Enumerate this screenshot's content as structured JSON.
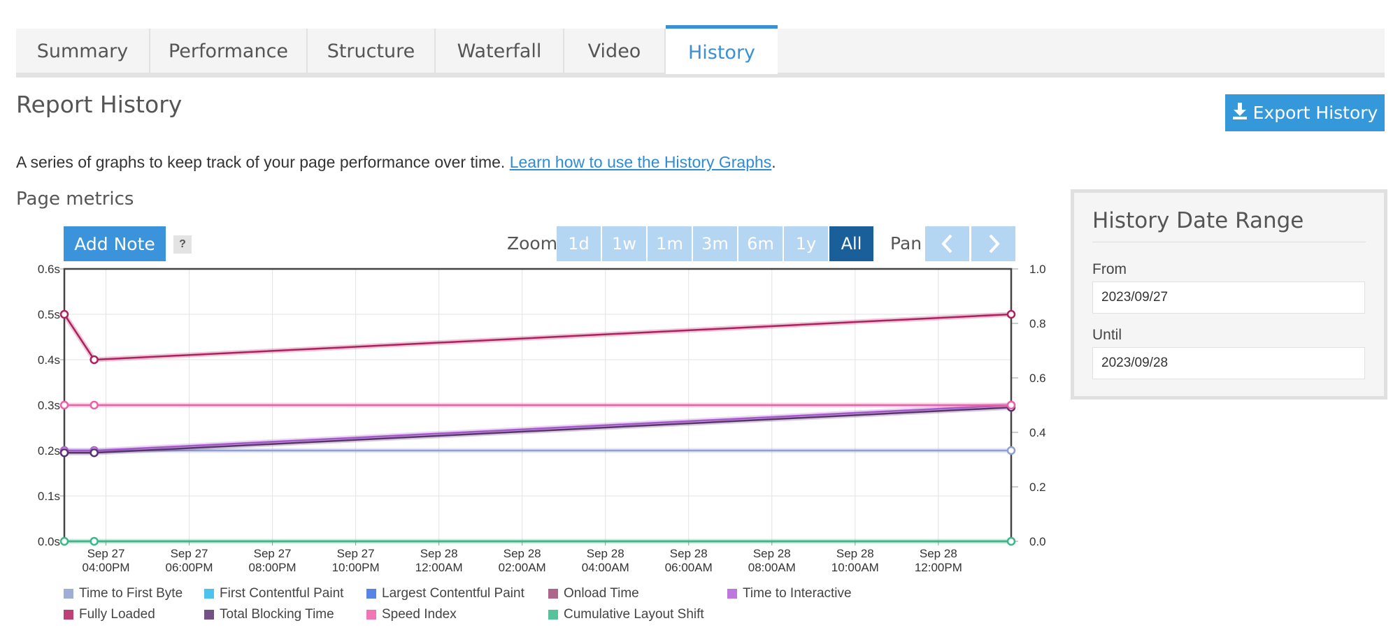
{
  "tabs": [
    {
      "label": "Summary",
      "active": false
    },
    {
      "label": "Performance",
      "active": false
    },
    {
      "label": "Structure",
      "active": false
    },
    {
      "label": "Waterfall",
      "active": false
    },
    {
      "label": "Video",
      "active": false
    },
    {
      "label": "History",
      "active": true
    }
  ],
  "header": {
    "title": "Report History",
    "export_label": "Export History",
    "export_icon": "download-icon"
  },
  "description": {
    "text": "A series of graphs to keep track of your page performance over time. ",
    "link_text": "Learn how to use the History Graphs",
    "suffix": "."
  },
  "section_title": "Page metrics",
  "toolbar": {
    "add_note": "Add Note",
    "help": "?",
    "zoom_label": "Zoom",
    "zoom_options": [
      "1d",
      "1w",
      "1m",
      "3m",
      "6m",
      "1y",
      "All"
    ],
    "zoom_selected": "All",
    "pan_label": "Pan",
    "pan_icons": [
      "chevron-left-icon",
      "chevron-right-icon"
    ]
  },
  "date_range": {
    "title": "History Date Range",
    "from_label": "From",
    "from_value": "2023/09/27",
    "until_label": "Until",
    "until_value": "2023/09/28"
  },
  "chart_data": {
    "type": "line",
    "x": [
      "2023-09-27T15:00",
      "2023-09-27T15:43",
      "2023-09-28T13:45"
    ],
    "x_ticks": [
      [
        "Sep 27",
        "04:00PM"
      ],
      [
        "Sep 27",
        "06:00PM"
      ],
      [
        "Sep 27",
        "08:00PM"
      ],
      [
        "Sep 27",
        "10:00PM"
      ],
      [
        "Sep 28",
        "12:00AM"
      ],
      [
        "Sep 28",
        "02:00AM"
      ],
      [
        "Sep 28",
        "04:00AM"
      ],
      [
        "Sep 28",
        "06:00AM"
      ],
      [
        "Sep 28",
        "08:00AM"
      ],
      [
        "Sep 28",
        "10:00AM"
      ],
      [
        "Sep 28",
        "12:00PM"
      ]
    ],
    "y_left": {
      "ticks": [
        "0.0s",
        "0.1s",
        "0.2s",
        "0.3s",
        "0.4s",
        "0.5s",
        "0.6s"
      ],
      "range": [
        0,
        0.6
      ]
    },
    "y_right": {
      "ticks": [
        "0.0",
        "0.2",
        "0.4",
        "0.6",
        "0.8",
        "1.0"
      ],
      "range": [
        0,
        1.0
      ]
    },
    "grid": true,
    "legend_position": "bottom",
    "series": [
      {
        "name": "Time to First Byte",
        "color": "#8f9fcf",
        "axis": "left",
        "values": [
          0.2,
          0.2,
          0.2
        ]
      },
      {
        "name": "First Contentful Paint",
        "color": "#2fb7ec",
        "axis": "left",
        "values": [
          null,
          null,
          null
        ]
      },
      {
        "name": "Largest Contentful Paint",
        "color": "#3b6fe0",
        "axis": "left",
        "values": [
          null,
          null,
          null
        ]
      },
      {
        "name": "Onload Time",
        "color": "#a04a78",
        "axis": "left",
        "values": [
          null,
          null,
          null
        ]
      },
      {
        "name": "Time to Interactive",
        "color": "#b060d8",
        "axis": "left",
        "values": [
          0.2,
          0.2,
          0.3
        ]
      },
      {
        "name": "Fully Loaded",
        "color": "#b01e5e",
        "axis": "left",
        "values": [
          0.5,
          0.4,
          0.5
        ]
      },
      {
        "name": "Total Blocking Time",
        "color": "#5a3270",
        "axis": "left",
        "values": [
          0.195,
          0.195,
          0.295
        ]
      },
      {
        "name": "Speed Index",
        "color": "#ee5fa7",
        "axis": "left",
        "values": [
          0.3,
          0.3,
          0.3
        ]
      },
      {
        "name": "Cumulative Layout Shift",
        "color": "#3ab88a",
        "axis": "right",
        "values": [
          0,
          0,
          0
        ]
      }
    ]
  }
}
